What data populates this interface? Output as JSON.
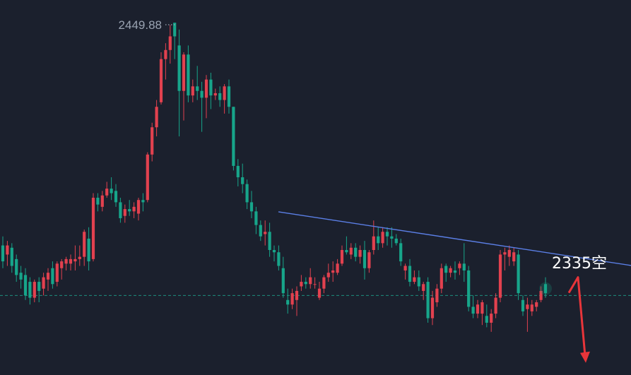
{
  "chart_data": {
    "type": "candlestick",
    "title": "",
    "xlabel": "",
    "ylabel": "",
    "ylim": [
      2295,
      2460
    ],
    "grid": false,
    "colors": {
      "background": "#1b202d",
      "up": "#e2414f",
      "down": "#17a58a",
      "trendline": "#5b7fe6",
      "price_line": "#1e8e7e",
      "arrow": "#e8353a",
      "label": "#9aa3b2",
      "annotation": "#ffffff"
    },
    "high_label": {
      "text": "2449.88",
      "value": 2449.88
    },
    "annotation": {
      "text": "2335空",
      "value": 2335
    },
    "current_price_line": {
      "value": 2330
    },
    "trendline": {
      "start_value": 2366.8,
      "end_value": 2343.2
    },
    "forecast_arrow": {
      "from_value": 2338,
      "to_value": 2301
    },
    "candles": [
      {
        "o": 2352,
        "h": 2356,
        "l": 2342,
        "c": 2345
      },
      {
        "o": 2348,
        "h": 2354,
        "l": 2343,
        "c": 2352
      },
      {
        "o": 2351,
        "h": 2353,
        "l": 2340,
        "c": 2343
      },
      {
        "o": 2346,
        "h": 2348,
        "l": 2336,
        "c": 2339
      },
      {
        "o": 2340,
        "h": 2343,
        "l": 2333,
        "c": 2337
      },
      {
        "o": 2339,
        "h": 2342,
        "l": 2328,
        "c": 2330
      },
      {
        "o": 2336,
        "h": 2338,
        "l": 2326,
        "c": 2329
      },
      {
        "o": 2329,
        "h": 2337,
        "l": 2327,
        "c": 2336
      },
      {
        "o": 2336,
        "h": 2338,
        "l": 2327,
        "c": 2332
      },
      {
        "o": 2333,
        "h": 2340,
        "l": 2330,
        "c": 2338
      },
      {
        "o": 2337,
        "h": 2342,
        "l": 2332,
        "c": 2340
      },
      {
        "o": 2342,
        "h": 2345,
        "l": 2333,
        "c": 2335
      },
      {
        "o": 2336,
        "h": 2345,
        "l": 2334,
        "c": 2344
      },
      {
        "o": 2342,
        "h": 2346,
        "l": 2337,
        "c": 2345
      },
      {
        "o": 2344,
        "h": 2347,
        "l": 2341,
        "c": 2346
      },
      {
        "o": 2344,
        "h": 2348,
        "l": 2341,
        "c": 2346
      },
      {
        "o": 2345,
        "h": 2352,
        "l": 2341,
        "c": 2346
      },
      {
        "o": 2346,
        "h": 2352,
        "l": 2343,
        "c": 2347
      },
      {
        "o": 2347,
        "h": 2359,
        "l": 2343,
        "c": 2358
      },
      {
        "o": 2355,
        "h": 2360,
        "l": 2341,
        "c": 2345
      },
      {
        "o": 2346,
        "h": 2375,
        "l": 2345,
        "c": 2373
      },
      {
        "o": 2373,
        "h": 2375,
        "l": 2367,
        "c": 2370
      },
      {
        "o": 2369,
        "h": 2376,
        "l": 2367,
        "c": 2374
      },
      {
        "o": 2374,
        "h": 2380,
        "l": 2373,
        "c": 2377
      },
      {
        "o": 2377,
        "h": 2382,
        "l": 2372,
        "c": 2375
      },
      {
        "o": 2376,
        "h": 2379,
        "l": 2369,
        "c": 2371
      },
      {
        "o": 2371,
        "h": 2373,
        "l": 2362,
        "c": 2364
      },
      {
        "o": 2365,
        "h": 2370,
        "l": 2362,
        "c": 2368
      },
      {
        "o": 2368,
        "h": 2372,
        "l": 2365,
        "c": 2367
      },
      {
        "o": 2367,
        "h": 2371,
        "l": 2364,
        "c": 2369
      },
      {
        "o": 2366,
        "h": 2373,
        "l": 2363,
        "c": 2372
      },
      {
        "o": 2372,
        "h": 2375,
        "l": 2367,
        "c": 2371
      },
      {
        "o": 2372,
        "h": 2393,
        "l": 2371,
        "c": 2392
      },
      {
        "o": 2392,
        "h": 2406,
        "l": 2389,
        "c": 2404
      },
      {
        "o": 2404,
        "h": 2416,
        "l": 2400,
        "c": 2413
      },
      {
        "o": 2415,
        "h": 2437,
        "l": 2414,
        "c": 2434
      },
      {
        "o": 2434,
        "h": 2441,
        "l": 2425,
        "c": 2438
      },
      {
        "o": 2438,
        "h": 2449,
        "l": 2432,
        "c": 2444
      },
      {
        "o": 2450,
        "h": 2450,
        "l": 2434,
        "c": 2444
      },
      {
        "o": 2440,
        "h": 2447,
        "l": 2400,
        "c": 2420
      },
      {
        "o": 2420,
        "h": 2437,
        "l": 2407,
        "c": 2436
      },
      {
        "o": 2436,
        "h": 2440,
        "l": 2415,
        "c": 2418
      },
      {
        "o": 2418,
        "h": 2425,
        "l": 2415,
        "c": 2422
      },
      {
        "o": 2422,
        "h": 2431,
        "l": 2416,
        "c": 2420
      },
      {
        "o": 2420,
        "h": 2424,
        "l": 2402,
        "c": 2417
      },
      {
        "o": 2417,
        "h": 2427,
        "l": 2408,
        "c": 2425
      },
      {
        "o": 2425,
        "h": 2428,
        "l": 2412,
        "c": 2418
      },
      {
        "o": 2418,
        "h": 2421,
        "l": 2416,
        "c": 2419
      },
      {
        "o": 2419,
        "h": 2422,
        "l": 2413,
        "c": 2416
      },
      {
        "o": 2416,
        "h": 2423,
        "l": 2410,
        "c": 2422
      },
      {
        "o": 2422,
        "h": 2425,
        "l": 2410,
        "c": 2413
      },
      {
        "o": 2413,
        "h": 2413,
        "l": 2385,
        "c": 2387
      },
      {
        "o": 2387,
        "h": 2390,
        "l": 2378,
        "c": 2382
      },
      {
        "o": 2382,
        "h": 2388,
        "l": 2375,
        "c": 2379
      },
      {
        "o": 2379,
        "h": 2381,
        "l": 2368,
        "c": 2371
      },
      {
        "o": 2371,
        "h": 2376,
        "l": 2364,
        "c": 2367
      },
      {
        "o": 2367,
        "h": 2369,
        "l": 2357,
        "c": 2361
      },
      {
        "o": 2361,
        "h": 2363,
        "l": 2354,
        "c": 2356
      },
      {
        "o": 2357,
        "h": 2363,
        "l": 2352,
        "c": 2358
      },
      {
        "o": 2358,
        "h": 2362,
        "l": 2347,
        "c": 2350
      },
      {
        "o": 2350,
        "h": 2352,
        "l": 2345,
        "c": 2349
      },
      {
        "o": 2349,
        "h": 2352,
        "l": 2341,
        "c": 2343
      },
      {
        "o": 2342,
        "h": 2347,
        "l": 2329,
        "c": 2331
      },
      {
        "o": 2328,
        "h": 2333,
        "l": 2322,
        "c": 2326
      },
      {
        "o": 2326,
        "h": 2333,
        "l": 2324,
        "c": 2331
      },
      {
        "o": 2328,
        "h": 2334,
        "l": 2321,
        "c": 2332
      },
      {
        "o": 2334,
        "h": 2339,
        "l": 2332,
        "c": 2336
      },
      {
        "o": 2336,
        "h": 2338,
        "l": 2333,
        "c": 2335
      },
      {
        "o": 2335,
        "h": 2342,
        "l": 2333,
        "c": 2338
      },
      {
        "o": 2335,
        "h": 2338,
        "l": 2333,
        "c": 2335
      },
      {
        "o": 2329,
        "h": 2336,
        "l": 2328,
        "c": 2333
      },
      {
        "o": 2333,
        "h": 2339,
        "l": 2331,
        "c": 2338
      },
      {
        "o": 2338,
        "h": 2344,
        "l": 2336,
        "c": 2340
      },
      {
        "o": 2340,
        "h": 2345,
        "l": 2336,
        "c": 2341
      },
      {
        "o": 2340,
        "h": 2346,
        "l": 2339,
        "c": 2344
      },
      {
        "o": 2344,
        "h": 2352,
        "l": 2343,
        "c": 2350
      },
      {
        "o": 2350,
        "h": 2356,
        "l": 2348,
        "c": 2349
      },
      {
        "o": 2348,
        "h": 2353,
        "l": 2346,
        "c": 2351
      },
      {
        "o": 2351,
        "h": 2353,
        "l": 2345,
        "c": 2347
      },
      {
        "o": 2347,
        "h": 2352,
        "l": 2344,
        "c": 2350
      },
      {
        "o": 2350,
        "h": 2354,
        "l": 2337,
        "c": 2342
      },
      {
        "o": 2342,
        "h": 2350,
        "l": 2340,
        "c": 2349
      },
      {
        "o": 2350,
        "h": 2363,
        "l": 2348,
        "c": 2356
      },
      {
        "o": 2356,
        "h": 2360,
        "l": 2350,
        "c": 2353
      },
      {
        "o": 2353,
        "h": 2360,
        "l": 2351,
        "c": 2358
      },
      {
        "o": 2358,
        "h": 2360,
        "l": 2352,
        "c": 2356
      },
      {
        "o": 2356,
        "h": 2360,
        "l": 2351,
        "c": 2355
      },
      {
        "o": 2355,
        "h": 2357,
        "l": 2352,
        "c": 2353
      },
      {
        "o": 2353,
        "h": 2355,
        "l": 2343,
        "c": 2345
      },
      {
        "o": 2341,
        "h": 2344,
        "l": 2337,
        "c": 2343
      },
      {
        "o": 2343,
        "h": 2346,
        "l": 2334,
        "c": 2336
      },
      {
        "o": 2336,
        "h": 2341,
        "l": 2335,
        "c": 2338
      },
      {
        "o": 2338,
        "h": 2341,
        "l": 2332,
        "c": 2334
      },
      {
        "o": 2332,
        "h": 2336,
        "l": 2328,
        "c": 2335
      },
      {
        "o": 2336,
        "h": 2338,
        "l": 2318,
        "c": 2320
      },
      {
        "o": 2320,
        "h": 2332,
        "l": 2317,
        "c": 2329
      },
      {
        "o": 2327,
        "h": 2335,
        "l": 2325,
        "c": 2333
      },
      {
        "o": 2333,
        "h": 2344,
        "l": 2331,
        "c": 2342
      },
      {
        "o": 2343,
        "h": 2344,
        "l": 2336,
        "c": 2340
      },
      {
        "o": 2340,
        "h": 2343,
        "l": 2338,
        "c": 2342
      },
      {
        "o": 2341,
        "h": 2345,
        "l": 2337,
        "c": 2340
      },
      {
        "o": 2342,
        "h": 2345,
        "l": 2339,
        "c": 2344
      },
      {
        "o": 2344,
        "h": 2353,
        "l": 2336,
        "c": 2341
      },
      {
        "o": 2341,
        "h": 2343,
        "l": 2323,
        "c": 2325
      },
      {
        "o": 2325,
        "h": 2330,
        "l": 2320,
        "c": 2322
      },
      {
        "o": 2322,
        "h": 2328,
        "l": 2320,
        "c": 2326
      },
      {
        "o": 2322,
        "h": 2328,
        "l": 2317,
        "c": 2327
      },
      {
        "o": 2321,
        "h": 2326,
        "l": 2316,
        "c": 2318
      },
      {
        "o": 2318,
        "h": 2324,
        "l": 2314,
        "c": 2322
      },
      {
        "o": 2322,
        "h": 2331,
        "l": 2320,
        "c": 2329
      },
      {
        "o": 2329,
        "h": 2350,
        "l": 2327,
        "c": 2348
      },
      {
        "o": 2348,
        "h": 2351,
        "l": 2341,
        "c": 2349
      },
      {
        "o": 2347,
        "h": 2352,
        "l": 2343,
        "c": 2350
      },
      {
        "o": 2345,
        "h": 2351,
        "l": 2343,
        "c": 2349
      },
      {
        "o": 2348,
        "h": 2350,
        "l": 2328,
        "c": 2331
      },
      {
        "o": 2328,
        "h": 2330,
        "l": 2321,
        "c": 2323
      },
      {
        "o": 2324,
        "h": 2329,
        "l": 2314,
        "c": 2326
      },
      {
        "o": 2323,
        "h": 2328,
        "l": 2321,
        "c": 2326
      },
      {
        "o": 2325,
        "h": 2328,
        "l": 2323,
        "c": 2327
      },
      {
        "o": 2328,
        "h": 2334,
        "l": 2327,
        "c": 2332
      },
      {
        "o": 2335,
        "h": 2338,
        "l": 2329,
        "c": 2331
      }
    ]
  }
}
